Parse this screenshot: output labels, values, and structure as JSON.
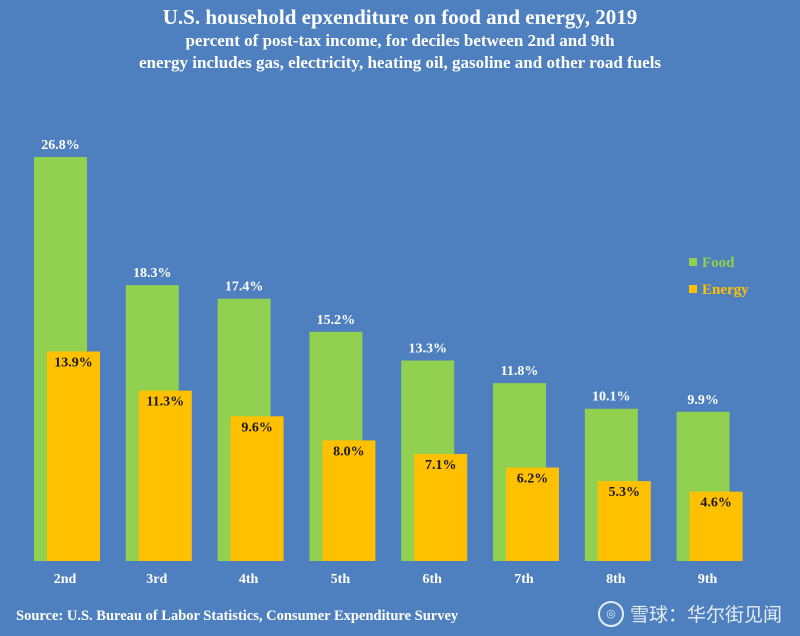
{
  "chart_data": {
    "type": "bar",
    "title": "U.S. household epxenditure on food and energy,  2019",
    "subtitle": "percent of post-tax income, for deciles between 2nd and 9th",
    "subtitle2": "energy includes gas, electricity, heating oil, gasoline and other road fuels",
    "categories": [
      "2nd",
      "3rd",
      "4th",
      "5th",
      "6th",
      "7th",
      "8th",
      "9th"
    ],
    "series": [
      {
        "name": "Food",
        "color": "#92d050",
        "values": [
          26.8,
          18.3,
          17.4,
          15.2,
          13.3,
          11.8,
          10.1,
          9.9
        ],
        "labels": [
          "26.8%",
          "18.3%",
          "17.4%",
          "15.2%",
          "13.3%",
          "11.8%",
          "10.1%",
          "9.9%"
        ],
        "label_color": "#ffffff"
      },
      {
        "name": "Energy",
        "color": "#ffc000",
        "values": [
          13.9,
          11.3,
          9.6,
          8.0,
          7.1,
          6.2,
          5.3,
          4.6
        ],
        "labels": [
          "13.9%",
          "11.3%",
          "9.6%",
          "8.0%",
          "7.1%",
          "6.2%",
          "5.3%",
          "4.6%"
        ],
        "label_color": "#1a1a1a"
      }
    ],
    "ylim": [
      0,
      27
    ],
    "legend_position": "right",
    "grid": false,
    "source": "Source: U.S. Bureau of Labor Statistics, Consumer Expenditure Survey"
  },
  "watermark": {
    "logo": "◎",
    "text": "雪球：华尔街见闻"
  }
}
